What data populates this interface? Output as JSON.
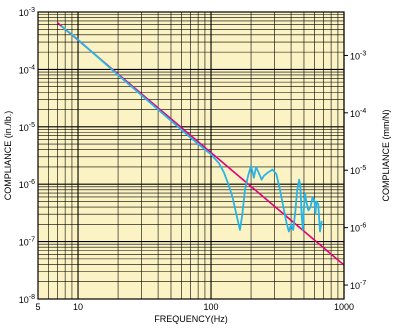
{
  "chart_data": {
    "type": "line",
    "title": "",
    "xlabel": "FREQUENCY(Hz)",
    "ylabel_left": "COMPLIANCE (in./lb.)",
    "ylabel_right": "COMPLIANCE (mm/N)",
    "x_scale": "log",
    "y_scale": "log",
    "xlim": [
      5,
      1000
    ],
    "ylim": [
      1e-08,
      0.001
    ],
    "ylim_right": [
      5.71e-08,
      0.00571
    ],
    "grid": true,
    "legend": "none",
    "colors": {
      "background": "#fbf3c4",
      "grid_major": "#000000",
      "grid_minor": "#000000",
      "series_reference": "#e3007a",
      "series_measured": "#29b4e6"
    },
    "x_ticks": [
      {
        "value": 5,
        "label": "5"
      },
      {
        "value": 10,
        "label": "10"
      },
      {
        "value": 100,
        "label": "100"
      },
      {
        "value": 1000,
        "label": "1000"
      }
    ],
    "y_ticks_left": [
      {
        "value": 1e-08,
        "base": "10",
        "exp": "-8"
      },
      {
        "value": 1e-07,
        "base": "10",
        "exp": "-7"
      },
      {
        "value": 1e-06,
        "base": "10",
        "exp": "-6"
      },
      {
        "value": 1e-05,
        "base": "10",
        "exp": "-5"
      },
      {
        "value": 0.0001,
        "base": "10",
        "exp": "-4"
      },
      {
        "value": 0.001,
        "base": "10",
        "exp": "-3"
      }
    ],
    "y_ticks_right": [
      {
        "value": 1e-07,
        "base": "10",
        "exp": "-7"
      },
      {
        "value": 1e-06,
        "base": "10",
        "exp": "-6"
      },
      {
        "value": 1e-05,
        "base": "10",
        "exp": "-5"
      },
      {
        "value": 0.0001,
        "base": "10",
        "exp": "-4"
      },
      {
        "value": 0.001,
        "base": "10",
        "exp": "-3"
      }
    ],
    "series": [
      {
        "points": [
          [
            7,
            0.00065
          ],
          [
            1000,
            3.9e-08
          ]
        ]
      },
      {
        "points": [
          [
            7.5,
            0.00057
          ],
          [
            10,
            0.00033
          ],
          [
            20,
            8e-05
          ],
          [
            40,
            2e-05
          ],
          [
            70,
            6.5e-06
          ],
          [
            100,
            3.3e-06
          ],
          [
            115,
            2.3e-06
          ],
          [
            125,
            1.6e-06
          ],
          [
            135,
            1e-06
          ],
          [
            145,
            6e-07
          ],
          [
            155,
            3e-07
          ],
          [
            165,
            1.6e-07
          ],
          [
            172,
            3e-07
          ],
          [
            180,
            8e-07
          ],
          [
            190,
            1.4e-06
          ],
          [
            200,
            2.1e-06
          ],
          [
            210,
            1.3e-06
          ],
          [
            218,
            2e-06
          ],
          [
            228,
            1.6e-06
          ],
          [
            240,
            1.2e-06
          ],
          [
            250,
            1.4e-06
          ],
          [
            268,
            1.6e-06
          ],
          [
            290,
            1.8e-06
          ],
          [
            310,
            1.5e-06
          ],
          [
            330,
            8e-07
          ],
          [
            350,
            4e-07
          ],
          [
            370,
            2.1e-07
          ],
          [
            385,
            1.5e-07
          ],
          [
            400,
            2e-07
          ],
          [
            415,
            1.6e-07
          ],
          [
            430,
            3.3e-07
          ],
          [
            445,
            8e-07
          ],
          [
            460,
            1.2e-06
          ],
          [
            470,
            9e-07
          ],
          [
            480,
            3e-07
          ],
          [
            490,
            1.6e-07
          ],
          [
            500,
            4e-07
          ],
          [
            510,
            7e-07
          ],
          [
            520,
            5e-07
          ],
          [
            540,
            3.5e-07
          ],
          [
            560,
            4e-07
          ],
          [
            580,
            6e-07
          ],
          [
            600,
            5e-07
          ],
          [
            610,
            3e-07
          ],
          [
            620,
            5e-07
          ],
          [
            640,
            4.5e-07
          ],
          [
            660,
            1.5e-07
          ],
          [
            680,
            2.3e-07
          ]
        ]
      }
    ]
  }
}
